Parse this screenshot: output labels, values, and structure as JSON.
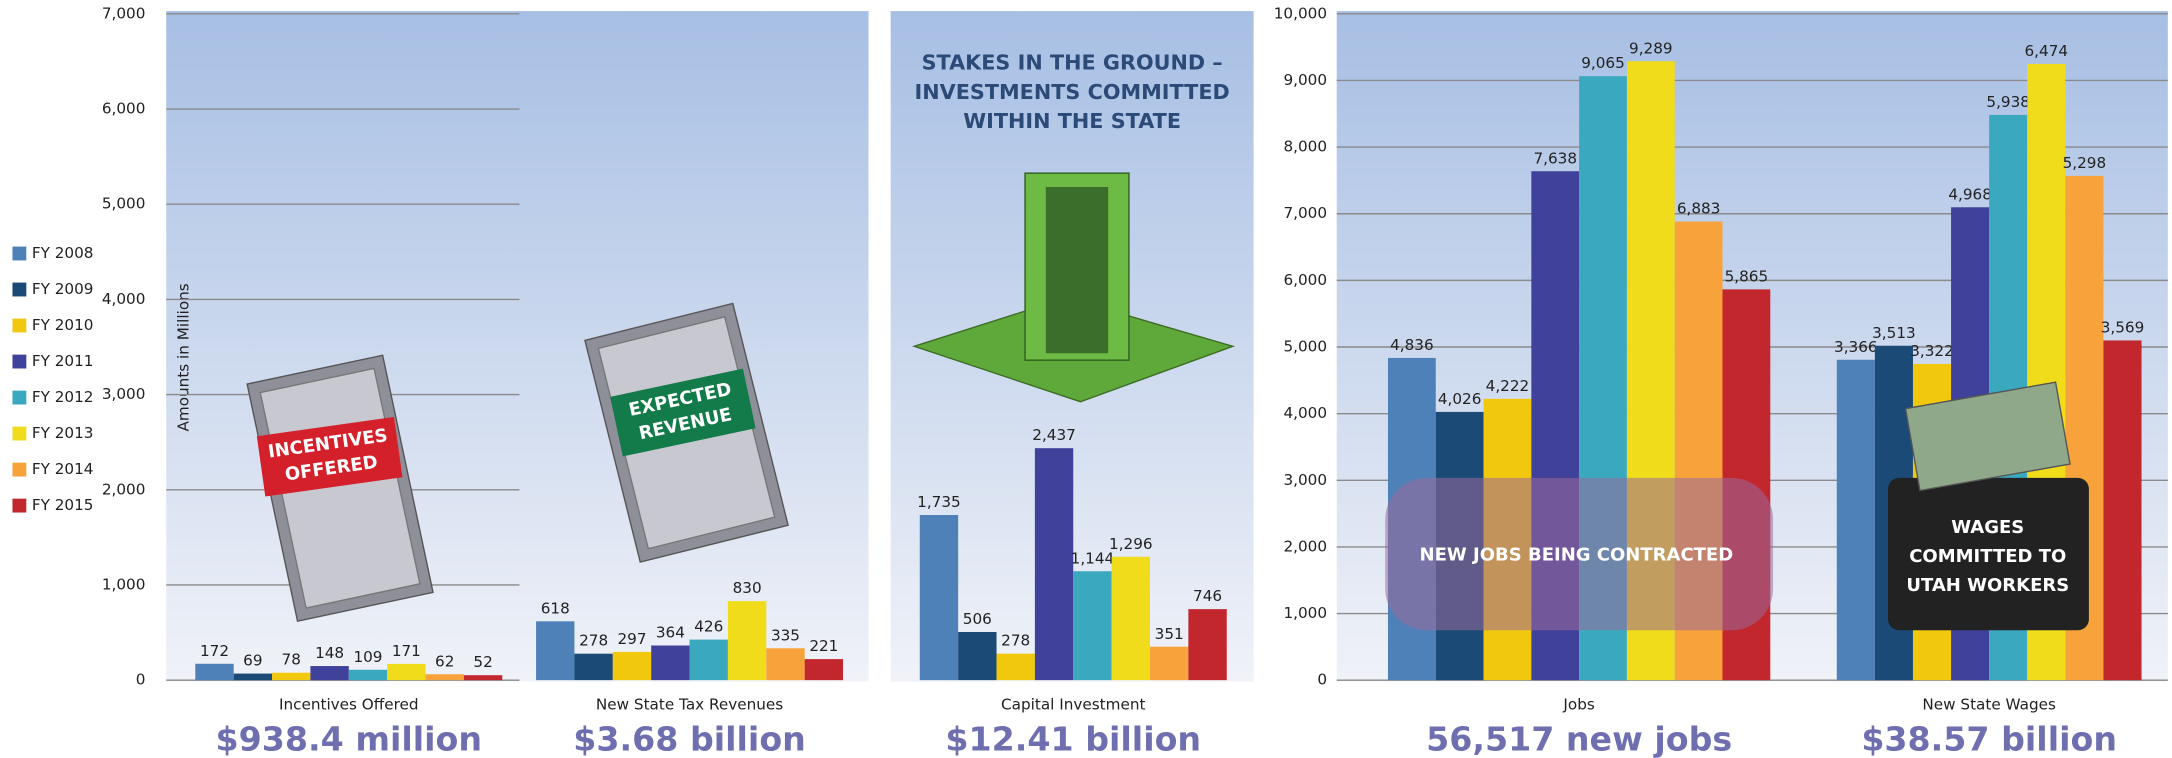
{
  "chart_data": [
    {
      "type": "bar",
      "ylabel": "Amounts in Millions",
      "ylim": [
        0,
        7000
      ],
      "yticks": [
        0,
        {
          "value": 1000,
          "label": "1,000"
        },
        {
          "value": 2000,
          "label": "2,000"
        },
        {
          "value": 3000,
          "label": "3,000"
        },
        {
          "value": 4000,
          "label": "4,000"
        },
        {
          "value": 5000,
          "label": "5,000"
        },
        {
          "value": 6000,
          "label": "6,000"
        },
        {
          "value": 7000,
          "label": "7,000"
        }
      ],
      "categories": [
        "Incentives Offered",
        "New State Tax Revenues",
        "Capital Investment"
      ],
      "totals": [
        "$938.4 million",
        "$3.68 billion",
        "$12.41 billion"
      ],
      "annotations": [
        [
          "INCENTIVES",
          "OFFERED"
        ],
        [
          "EXPECTED",
          "REVENUE"
        ],
        [
          "STAKES IN THE GROUND –",
          "INVESTMENTS COMMITTED",
          "WITHIN THE STATE"
        ]
      ],
      "grid": true,
      "series": [
        {
          "name": "FY 2008",
          "color": "#4f81b9",
          "values": [
            172,
            618,
            1735
          ],
          "value_labels": [
            "172",
            "618",
            "1,735"
          ]
        },
        {
          "name": "FY 2009",
          "color": "#1b4a76",
          "values": [
            69,
            278,
            506
          ],
          "value_labels": [
            "69",
            "278",
            "506"
          ]
        },
        {
          "name": "FY 2010",
          "color": "#f2c80f",
          "values": [
            78,
            297,
            278
          ],
          "value_labels": [
            "78",
            "297",
            "278"
          ]
        },
        {
          "name": "FY 2011",
          "color": "#40419a",
          "values": [
            148,
            364,
            2437
          ],
          "value_labels": [
            "148",
            "364",
            "2,437"
          ]
        },
        {
          "name": "FY 2012",
          "color": "#3aa8bf",
          "values": [
            109,
            426,
            1144
          ],
          "value_labels": [
            "109",
            "426",
            "1,144"
          ]
        },
        {
          "name": "FY 2013",
          "color": "#f0dc1a",
          "values": [
            171,
            830,
            1296
          ],
          "value_labels": [
            "171",
            "830",
            "1,296"
          ]
        },
        {
          "name": "FY 2014",
          "color": "#f7a23a",
          "values": [
            62,
            335,
            351
          ],
          "value_labels": [
            "62",
            "335",
            "351"
          ]
        },
        {
          "name": "FY 2015",
          "color": "#c1272d",
          "values": [
            52,
            221,
            746
          ],
          "value_labels": [
            "52",
            "221",
            "746"
          ]
        }
      ]
    },
    {
      "type": "bar",
      "xlabel": "Jobs",
      "total": "56,517 new jobs",
      "annotation": [
        "NEW JOBS BEING CONTRACTED"
      ],
      "ylim": [
        0,
        10000
      ],
      "yticks": [
        0,
        {
          "value": 1000,
          "label": "1,000"
        },
        {
          "value": 2000,
          "label": "2,000"
        },
        {
          "value": 3000,
          "label": "3,000"
        },
        {
          "value": 4000,
          "label": "4,000"
        },
        {
          "value": 5000,
          "label": "5,000"
        },
        {
          "value": 6000,
          "label": "6,000"
        },
        {
          "value": 7000,
          "label": "7,000"
        },
        {
          "value": 8000,
          "label": "8,000"
        },
        {
          "value": 9000,
          "label": "9,000"
        },
        {
          "value": 10000,
          "label": "10,000"
        }
      ],
      "grid": true,
      "values": [
        4836,
        4026,
        4222,
        7638,
        9065,
        9289,
        6883,
        5865
      ],
      "value_labels": [
        "4,836",
        "4,026",
        "4,222",
        "7,638",
        "9,065",
        "9,289",
        "6,883",
        "5,865"
      ]
    },
    {
      "type": "bar",
      "xlabel": "New State Wages",
      "total": "$38.57 billion",
      "annotation": [
        "WAGES",
        "COMMITTED TO",
        "UTAH WORKERS"
      ],
      "ylim": [
        0,
        7000
      ],
      "values": [
        3366,
        3513,
        3322,
        4968,
        5938,
        6474,
        5298,
        3569
      ],
      "value_labels": [
        "3,366",
        "3,513",
        "3,322",
        "4,968",
        "5,938",
        "6,474",
        "5,298",
        "3,569"
      ]
    }
  ]
}
